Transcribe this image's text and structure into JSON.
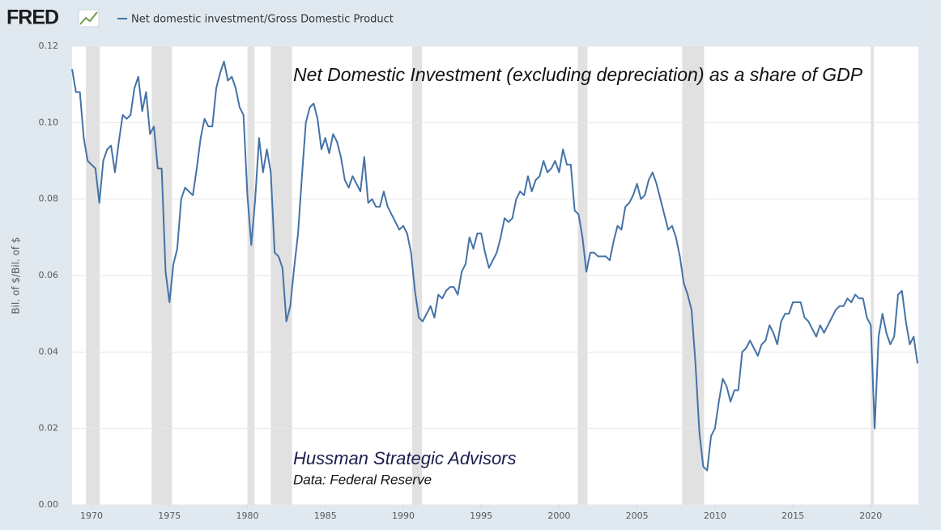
{
  "chart_data": {
    "type": "line",
    "logo": "FRED",
    "ylabel": "Bil. of $/Bil. of $",
    "annotations": [
      "Net Domestic Investment (excluding depreciation) as a share of GDP",
      "Hussman Strategic Advisors",
      "Data: Federal Reserve"
    ],
    "xlim": [
      1968.75,
      2023.05
    ],
    "ylim": [
      0,
      0.12
    ],
    "xticks": [
      1970,
      1975,
      1980,
      1985,
      1990,
      1995,
      2000,
      2005,
      2010,
      2015,
      2020
    ],
    "yticks": [
      {
        "value": 0,
        "label": "0.00"
      },
      0.02,
      0.04,
      0.06,
      0.08,
      {
        "value": 0.1,
        "label": "0.10"
      },
      0.12
    ],
    "grid": true,
    "recessions": [
      [
        1969.64,
        1970.52
      ],
      [
        1973.86,
        1975.16
      ],
      [
        1980.0,
        1980.46
      ],
      [
        1981.5,
        1982.86
      ],
      [
        1990.57,
        1991.2
      ],
      [
        2001.2,
        2001.82
      ],
      [
        2007.9,
        2009.3
      ],
      [
        2020.0,
        2020.2
      ]
    ],
    "series": [
      {
        "name": "Net domestic investment/Gross Domestic Product",
        "color": "#4572a7",
        "x": [
          1968.75,
          1969,
          1969.25,
          1969.5,
          1969.75,
          1970,
          1970.25,
          1970.5,
          1970.75,
          1971,
          1971.25,
          1971.5,
          1971.75,
          1972,
          1972.25,
          1972.5,
          1972.75,
          1973,
          1973.25,
          1973.5,
          1973.75,
          1974,
          1974.25,
          1974.5,
          1974.75,
          1975,
          1975.25,
          1975.5,
          1975.75,
          1976,
          1976.25,
          1976.5,
          1976.75,
          1977,
          1977.25,
          1977.5,
          1977.75,
          1978,
          1978.25,
          1978.5,
          1978.75,
          1979,
          1979.25,
          1979.5,
          1979.75,
          1980,
          1980.25,
          1980.5,
          1980.75,
          1981,
          1981.25,
          1981.5,
          1981.75,
          1982,
          1982.25,
          1982.5,
          1982.75,
          1983,
          1983.25,
          1983.5,
          1983.75,
          1984,
          1984.25,
          1984.5,
          1984.75,
          1985,
          1985.25,
          1985.5,
          1985.75,
          1986,
          1986.25,
          1986.5,
          1986.75,
          1987,
          1987.25,
          1987.5,
          1987.75,
          1988,
          1988.25,
          1988.5,
          1988.75,
          1989,
          1989.25,
          1989.5,
          1989.75,
          1990,
          1990.25,
          1990.5,
          1990.75,
          1991,
          1991.25,
          1991.5,
          1991.75,
          1992,
          1992.25,
          1992.5,
          1992.75,
          1993,
          1993.25,
          1993.5,
          1993.75,
          1994,
          1994.25,
          1994.5,
          1994.75,
          1995,
          1995.25,
          1995.5,
          1995.75,
          1996,
          1996.25,
          1996.5,
          1996.75,
          1997,
          1997.25,
          1997.5,
          1997.75,
          1998,
          1998.25,
          1998.5,
          1998.75,
          1999,
          1999.25,
          1999.5,
          1999.75,
          2000,
          2000.25,
          2000.5,
          2000.75,
          2001,
          2001.25,
          2001.5,
          2001.75,
          2002,
          2002.25,
          2002.5,
          2002.75,
          2003,
          2003.25,
          2003.5,
          2003.75,
          2004,
          2004.25,
          2004.5,
          2004.75,
          2005,
          2005.25,
          2005.5,
          2005.75,
          2006,
          2006.25,
          2006.5,
          2006.75,
          2007,
          2007.25,
          2007.5,
          2007.75,
          2008,
          2008.25,
          2008.5,
          2008.75,
          2009,
          2009.25,
          2009.5,
          2009.75,
          2010,
          2010.25,
          2010.5,
          2010.75,
          2011,
          2011.25,
          2011.5,
          2011.75,
          2012,
          2012.25,
          2012.5,
          2012.75,
          2013,
          2013.25,
          2013.5,
          2013.75,
          2014,
          2014.25,
          2014.5,
          2014.75,
          2015,
          2015.25,
          2015.5,
          2015.75,
          2016,
          2016.25,
          2016.5,
          2016.75,
          2017,
          2017.25,
          2017.5,
          2017.75,
          2018,
          2018.25,
          2018.5,
          2018.75,
          2019,
          2019.25,
          2019.5,
          2019.75,
          2020,
          2020.25,
          2020.5,
          2020.75,
          2021,
          2021.25,
          2021.5,
          2021.75,
          2022,
          2022.25,
          2022.5,
          2022.75,
          2023
        ],
        "values": [
          0.114,
          0.108,
          0.108,
          0.096,
          0.09,
          0.089,
          0.088,
          0.079,
          0.09,
          0.093,
          0.094,
          0.087,
          0.095,
          0.102,
          0.101,
          0.102,
          0.109,
          0.112,
          0.103,
          0.108,
          0.097,
          0.099,
          0.088,
          0.088,
          0.061,
          0.053,
          0.063,
          0.067,
          0.08,
          0.083,
          0.082,
          0.081,
          0.088,
          0.096,
          0.101,
          0.099,
          0.099,
          0.109,
          0.113,
          0.116,
          0.111,
          0.112,
          0.109,
          0.104,
          0.102,
          0.081,
          0.068,
          0.08,
          0.096,
          0.087,
          0.093,
          0.087,
          0.066,
          0.065,
          0.062,
          0.048,
          0.052,
          0.062,
          0.071,
          0.086,
          0.1,
          0.104,
          0.105,
          0.101,
          0.093,
          0.096,
          0.092,
          0.097,
          0.095,
          0.091,
          0.085,
          0.083,
          0.086,
          0.084,
          0.082,
          0.091,
          0.079,
          0.08,
          0.078,
          0.078,
          0.082,
          0.078,
          0.076,
          0.074,
          0.072,
          0.073,
          0.071,
          0.066,
          0.056,
          0.049,
          0.048,
          0.05,
          0.052,
          0.049,
          0.055,
          0.054,
          0.056,
          0.057,
          0.057,
          0.055,
          0.061,
          0.063,
          0.07,
          0.067,
          0.071,
          0.071,
          0.066,
          0.062,
          0.064,
          0.066,
          0.07,
          0.075,
          0.074,
          0.075,
          0.08,
          0.082,
          0.081,
          0.086,
          0.082,
          0.085,
          0.086,
          0.09,
          0.087,
          0.088,
          0.09,
          0.087,
          0.093,
          0.089,
          0.089,
          0.077,
          0.076,
          0.07,
          0.061,
          0.066,
          0.066,
          0.065,
          0.065,
          0.065,
          0.064,
          0.069,
          0.073,
          0.072,
          0.078,
          0.079,
          0.081,
          0.084,
          0.08,
          0.081,
          0.085,
          0.087,
          0.084,
          0.08,
          0.076,
          0.072,
          0.073,
          0.07,
          0.065,
          0.058,
          0.055,
          0.051,
          0.037,
          0.019,
          0.01,
          0.009,
          0.018,
          0.02,
          0.027,
          0.033,
          0.031,
          0.027,
          0.03,
          0.03,
          0.04,
          0.041,
          0.043,
          0.041,
          0.039,
          0.042,
          0.043,
          0.047,
          0.045,
          0.042,
          0.048,
          0.05,
          0.05,
          0.053,
          0.053,
          0.053,
          0.049,
          0.048,
          0.046,
          0.044,
          0.047,
          0.045,
          0.047,
          0.049,
          0.051,
          0.052,
          0.052,
          0.054,
          0.053,
          0.055,
          0.054,
          0.054,
          0.049,
          0.047,
          0.02,
          0.044,
          0.05,
          0.045,
          0.042,
          0.044,
          0.055,
          0.056,
          0.048,
          0.042,
          0.044,
          0.037
        ]
      }
    ]
  }
}
